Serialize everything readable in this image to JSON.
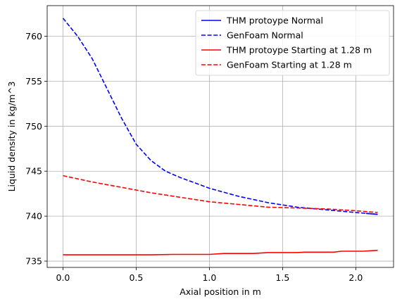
{
  "chart_data": {
    "type": "line",
    "title": "",
    "xlabel": "Axial position in m",
    "ylabel": "Liquid density in kg/m^3",
    "xlim": [
      -0.108,
      2.258
    ],
    "ylim": [
      734.3,
      763.4
    ],
    "xticks": [
      0.0,
      0.5,
      1.0,
      1.5,
      2.0
    ],
    "xtick_labels": [
      "0.0",
      "0.5",
      "1.0",
      "1.5",
      "2.0"
    ],
    "yticks": [
      735,
      740,
      745,
      750,
      755,
      760
    ],
    "ytick_labels": [
      "735",
      "740",
      "745",
      "750",
      "755",
      "760"
    ],
    "grid": true,
    "legend_position": "top-right",
    "series": [
      {
        "name": "THM protoype Normal",
        "color": "#0000ff",
        "linestyle": "solid",
        "x": [
          2.07,
          2.15
        ],
        "y": [
          740.3,
          740.2
        ]
      },
      {
        "name": "GenFoam Normal",
        "color": "#0000ff",
        "linestyle": "dashed",
        "x": [
          0.0,
          0.1,
          0.2,
          0.3,
          0.4,
          0.5,
          0.6,
          0.7,
          0.8,
          0.9,
          1.0,
          1.2,
          1.4,
          1.6,
          1.8,
          2.0,
          2.15
        ],
        "y": [
          762.0,
          760.0,
          757.5,
          754.2,
          750.9,
          748.0,
          746.2,
          745.0,
          744.3,
          743.7,
          743.1,
          742.2,
          741.5,
          741.0,
          740.7,
          740.4,
          740.2
        ]
      },
      {
        "name": "THM protoype Starting at 1.28 m",
        "color": "#ff0000",
        "linestyle": "solid",
        "x": [
          0.0,
          0.3,
          0.6,
          0.75,
          1.0,
          1.1,
          1.3,
          1.4,
          1.6,
          1.65,
          1.85,
          1.9,
          2.05,
          2.15
        ],
        "y": [
          735.7,
          735.7,
          735.7,
          735.75,
          735.75,
          735.85,
          735.85,
          735.95,
          735.95,
          736.0,
          736.0,
          736.1,
          736.1,
          736.2
        ]
      },
      {
        "name": "GenFoam Starting at 1.28 m",
        "color": "#ff0000",
        "linestyle": "dashed",
        "x": [
          0.0,
          0.2,
          0.4,
          0.6,
          0.8,
          1.0,
          1.2,
          1.4,
          1.6,
          1.8,
          2.0,
          2.15
        ],
        "y": [
          744.5,
          743.8,
          743.2,
          742.6,
          742.1,
          741.6,
          741.3,
          741.0,
          740.9,
          740.8,
          740.6,
          740.4
        ]
      }
    ]
  }
}
